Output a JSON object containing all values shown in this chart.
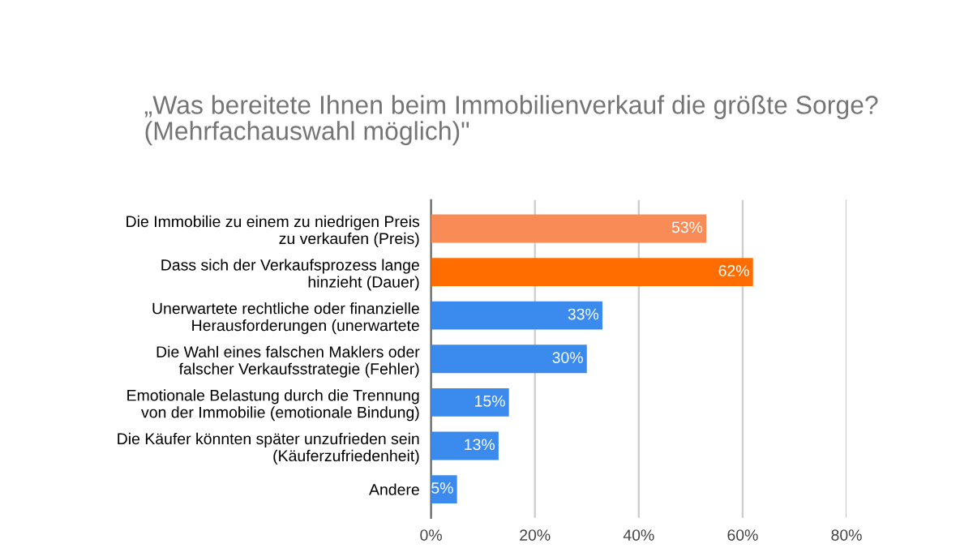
{
  "chart_data": {
    "type": "bar",
    "orientation": "horizontal",
    "title": "„Was bereitete Ihnen beim Immobilienverkauf die größte Sorge?\n(Mehrfachauswahl möglich)\"",
    "categories": [
      "Die Immobilie zu einem zu niedrigen Preis\nzu verkaufen (Preis)",
      "Dass sich der Verkaufsprozess lange\nhinzieht (Dauer)",
      "Unerwartete rechtliche oder finanzielle\nHerausforderungen (unerwartete",
      "Die Wahl eines falschen Maklers oder\nfalscher Verkaufsstrategie (Fehler)",
      "Emotionale Belastung durch die Trennung\nvon der Immobilie (emotionale Bindung)",
      "Die Käufer könnten später unzufrieden sein\n(Käuferzufriedenheit)",
      "Andere"
    ],
    "values": [
      53,
      62,
      33,
      30,
      15,
      13,
      5
    ],
    "colors": [
      "#f98b56",
      "#ff6d01",
      "#3b8aee",
      "#3b8aee",
      "#3b8aee",
      "#3b8aee",
      "#3b8aee"
    ],
    "value_labels": [
      "53%",
      "62%",
      "33%",
      "30%",
      "15%",
      "13%",
      "5%"
    ],
    "xlim": [
      0,
      80
    ],
    "xticks": [
      {
        "value": 0,
        "label": "0%"
      },
      {
        "value": 20,
        "label": "20%"
      },
      {
        "value": 40,
        "label": "40%"
      },
      {
        "value": 60,
        "label": "60%"
      },
      {
        "value": 80,
        "label": "80%"
      }
    ],
    "grid": "x"
  }
}
